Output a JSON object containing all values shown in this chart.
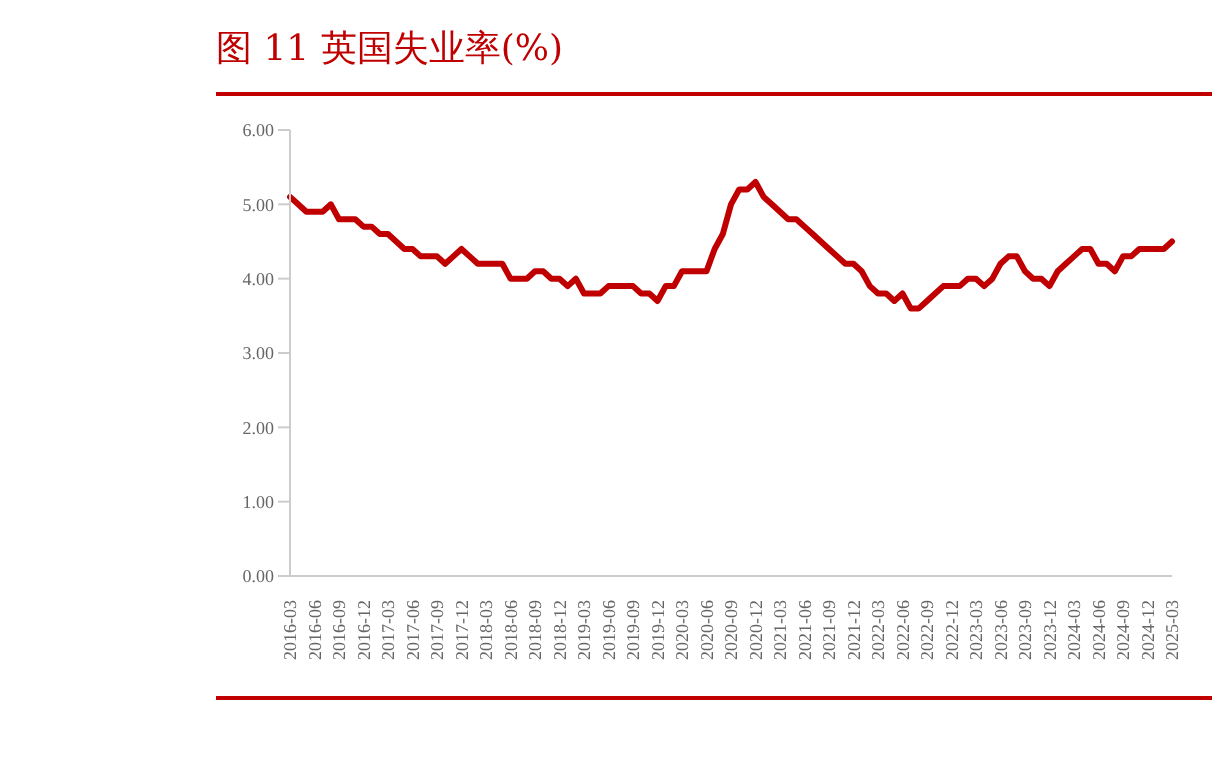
{
  "chart_data": {
    "type": "line",
    "title": "图 11 英国失业率(%)",
    "categories": [
      "2016-03",
      null,
      null,
      "2016-06",
      null,
      null,
      "2016-09",
      null,
      null,
      "2016-12",
      null,
      null,
      "2017-03",
      null,
      null,
      "2017-06",
      null,
      null,
      "2017-09",
      null,
      null,
      "2017-12",
      null,
      null,
      "2018-03",
      null,
      null,
      "2018-06",
      null,
      null,
      "2018-09",
      null,
      null,
      "2018-12",
      null,
      null,
      "2019-03",
      null,
      null,
      "2019-06",
      null,
      null,
      "2019-09",
      null,
      null,
      "2019-12",
      null,
      null,
      "2020-03",
      null,
      null,
      "2020-06",
      null,
      null,
      "2020-09",
      null,
      null,
      "2020-12",
      null,
      null,
      "2021-03",
      null,
      null,
      "2021-06",
      null,
      null,
      "2021-09",
      null,
      null,
      "2021-12",
      null,
      null,
      "2022-03",
      null,
      null,
      "2022-06",
      null,
      null,
      "2022-09",
      null,
      null,
      "2022-12",
      null,
      null,
      "2023-03",
      null,
      null,
      "2023-06",
      null,
      null,
      "2023-09",
      null,
      null,
      "2023-12",
      null,
      null,
      "2024-03",
      null,
      null,
      "2024-06",
      null,
      null,
      "2024-09",
      null,
      null,
      "2024-12",
      null,
      null,
      "2025-03"
    ],
    "series": [
      {
        "color": "#c00000",
        "values": [
          5.1,
          5.0,
          4.9,
          4.9,
          4.9,
          5.0,
          4.8,
          4.8,
          4.8,
          4.7,
          4.7,
          4.6,
          4.6,
          4.5,
          4.4,
          4.4,
          4.3,
          4.3,
          4.3,
          4.2,
          4.3,
          4.4,
          4.3,
          4.2,
          4.2,
          4.2,
          4.2,
          4.0,
          4.0,
          4.0,
          4.1,
          4.1,
          4.0,
          4.0,
          3.9,
          4.0,
          3.8,
          3.8,
          3.8,
          3.9,
          3.9,
          3.9,
          3.9,
          3.8,
          3.8,
          3.7,
          3.9,
          3.9,
          4.1,
          4.1,
          4.1,
          4.1,
          4.4,
          4.6,
          5.0,
          5.2,
          5.2,
          5.3,
          5.1,
          5.0,
          4.9,
          4.8,
          4.8,
          4.7,
          4.6,
          4.5,
          4.4,
          4.3,
          4.2,
          4.2,
          4.1,
          3.9,
          3.8,
          3.8,
          3.7,
          3.8,
          3.6,
          3.6,
          3.7,
          3.8,
          3.9,
          3.9,
          3.9,
          4.0,
          4.0,
          3.9,
          4.0,
          4.2,
          4.3,
          4.3,
          4.1,
          4.0,
          4.0,
          3.9,
          4.1,
          4.2,
          4.3,
          4.4,
          4.4,
          4.2,
          4.2,
          4.1,
          4.3,
          4.3,
          4.4,
          4.4,
          4.4,
          4.4,
          4.5
        ]
      }
    ],
    "ylim": [
      0,
      6
    ],
    "yticks": [
      {
        "value": 0,
        "label": "0.00"
      },
      {
        "value": 1,
        "label": "1.00"
      },
      {
        "value": 2,
        "label": "2.00"
      },
      {
        "value": 3,
        "label": "3.00"
      },
      {
        "value": 4,
        "label": "4.00"
      },
      {
        "value": 5,
        "label": "5.00"
      },
      {
        "value": 6,
        "label": "6.00"
      }
    ],
    "grid": false,
    "legend": false,
    "marker": "none",
    "line_style": "solid"
  }
}
